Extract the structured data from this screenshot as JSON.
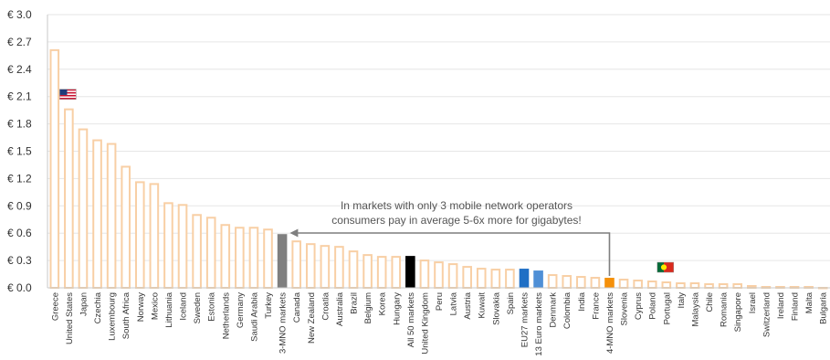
{
  "chart_data": {
    "type": "bar",
    "title": "",
    "xlabel": "",
    "ylabel": "",
    "ylim": [
      0,
      3.0
    ],
    "yticks": [
      "€ 0.0",
      "€ 0.3",
      "€ 0.6",
      "€ 0.9",
      "€ 1.2",
      "€ 1.5",
      "€ 1.8",
      "€ 2.1",
      "€ 2.4",
      "€ 2.7",
      "€ 3.0"
    ],
    "grid": true,
    "categories": [
      "Greece",
      "United States",
      "Japan",
      "Czechia",
      "Luxembourg",
      "South Africa",
      "Norway",
      "Mexico",
      "Lithuania",
      "Iceland",
      "Sweden",
      "Estonia",
      "Netherlands",
      "Germany",
      "Saudi Arabia",
      "Turkey",
      "3-MNO markets",
      "Canada",
      "New Zealand",
      "Croatia",
      "Australia",
      "Brazil",
      "Belgium",
      "Korea",
      "Hungary",
      "All 50 markets",
      "United Kingdom",
      "Peru",
      "Latvia",
      "Austria",
      "Kuwait",
      "Slovakia",
      "Spain",
      "EU27 markets",
      "13 Euro markets",
      "Denmark",
      "Colombia",
      "India",
      "France",
      "4-MNO markets",
      "Slovenia",
      "Cyprus",
      "Poland",
      "Portugal",
      "Italy",
      "Malaysia",
      "Chile",
      "Romania",
      "Singapore",
      "Israel",
      "Switzerland",
      "Ireland",
      "Finland",
      "Malta",
      "Bulgaria"
    ],
    "values": [
      2.62,
      1.97,
      1.75,
      1.63,
      1.59,
      1.34,
      1.17,
      1.15,
      0.94,
      0.92,
      0.81,
      0.78,
      0.7,
      0.67,
      0.67,
      0.65,
      0.59,
      0.52,
      0.49,
      0.47,
      0.46,
      0.41,
      0.37,
      0.35,
      0.35,
      0.35,
      0.31,
      0.29,
      0.27,
      0.24,
      0.22,
      0.21,
      0.21,
      0.21,
      0.19,
      0.15,
      0.14,
      0.13,
      0.12,
      0.11,
      0.1,
      0.09,
      0.08,
      0.07,
      0.06,
      0.06,
      0.05,
      0.05,
      0.05,
      0.03,
      0.02,
      0.02,
      0.02,
      0.02,
      0.01
    ],
    "colors": {
      "default_outline": "#f8cfa5",
      "3-MNO markets": "#7f7f7f",
      "All 50 markets": "#000000",
      "EU27 markets": "#1f6fc5",
      "13 Euro markets": "#4f8fd6",
      "4-MNO markets": "#f5900a"
    },
    "flags": [
      {
        "category": "United States",
        "icon": "us-flag-icon"
      },
      {
        "category": "Portugal",
        "icon": "portugal-flag-icon"
      }
    ],
    "annotation": {
      "lines": [
        "In markets with only 3 mobile network operators",
        "consumers pay in average 5-6x more for gigabytes!"
      ],
      "from_category": "4-MNO markets",
      "to_category": "3-MNO markets",
      "color": "#7f7f7f"
    }
  }
}
